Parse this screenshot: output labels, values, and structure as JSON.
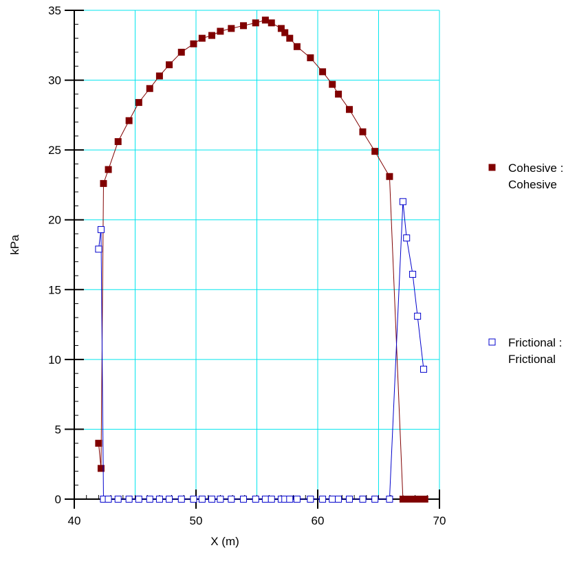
{
  "chart_data": {
    "type": "line",
    "xlabel": "X (m)",
    "ylabel": "kPa",
    "xlim": [
      40,
      70
    ],
    "ylim": [
      0,
      35
    ],
    "xticks": [
      40,
      50,
      60,
      70
    ],
    "yticks": [
      0,
      5,
      10,
      15,
      20,
      25,
      30,
      35
    ],
    "grid": true,
    "grid_color": "#00e5ee",
    "legend_position": "right",
    "series": [
      {
        "name": "Cohesive : Cohesive",
        "legend_lines": [
          "Cohesive :",
          "Cohesive"
        ],
        "color": "#800000",
        "marker": "filled-square",
        "x": [
          42.0,
          42.2,
          42.4,
          42.8,
          43.6,
          44.5,
          45.3,
          46.2,
          47.0,
          47.8,
          48.8,
          49.8,
          50.5,
          51.3,
          52.0,
          52.9,
          53.9,
          54.9,
          55.7,
          56.2,
          57.0,
          57.3,
          57.7,
          58.3,
          59.4,
          60.4,
          61.2,
          61.7,
          62.6,
          63.7,
          64.7,
          65.9,
          67.0,
          67.3,
          67.6,
          67.9,
          68.2,
          68.5,
          68.8
        ],
        "y": [
          4.0,
          2.2,
          22.6,
          23.6,
          25.6,
          27.1,
          28.4,
          29.4,
          30.3,
          31.1,
          32.0,
          32.6,
          33.0,
          33.2,
          33.5,
          33.7,
          33.9,
          34.1,
          34.3,
          34.1,
          33.7,
          33.4,
          33.0,
          32.4,
          31.6,
          30.6,
          29.7,
          29.0,
          27.9,
          26.3,
          24.9,
          23.1,
          0.0,
          0.0,
          0.0,
          0.0,
          0.0,
          0.0,
          0.0
        ]
      },
      {
        "name": "Frictional : Frictional",
        "legend_lines": [
          "Frictional :",
          "Frictional"
        ],
        "color": "#0000cc",
        "marker": "hollow-square",
        "x": [
          42.0,
          42.2,
          42.4,
          42.8,
          43.6,
          44.5,
          45.3,
          46.2,
          47.0,
          47.8,
          48.8,
          49.8,
          50.5,
          51.3,
          52.0,
          52.9,
          53.9,
          54.9,
          55.7,
          56.2,
          57.0,
          57.3,
          57.7,
          58.3,
          59.4,
          60.4,
          61.2,
          61.7,
          62.6,
          63.7,
          64.7,
          65.9,
          67.0,
          67.3,
          67.8,
          68.2,
          68.7
        ],
        "y": [
          17.9,
          19.3,
          0.0,
          0.0,
          0.0,
          0.0,
          0.0,
          0.0,
          0.0,
          0.0,
          0.0,
          0.0,
          0.0,
          0.0,
          0.0,
          0.0,
          0.0,
          0.0,
          0.0,
          0.0,
          0.0,
          0.0,
          0.0,
          0.0,
          0.0,
          0.0,
          0.0,
          0.0,
          0.0,
          0.0,
          0.0,
          0.0,
          21.3,
          18.7,
          16.1,
          13.1,
          9.3
        ]
      }
    ]
  }
}
